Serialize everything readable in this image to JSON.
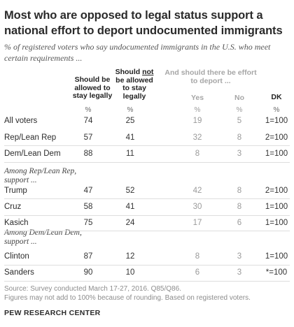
{
  "title": "Most who are opposed to legal status support a national effort to deport undocumented immigrants",
  "subtitle": "% of registered voters who say undocumented immigrants in the U.S. who meet certain requirements ...",
  "headers": {
    "col1": "Should be allowed to stay legally",
    "col2_pre": "Should ",
    "col2_not": "not",
    "col2_post": " be allowed to stay legally",
    "group": "And should there be effort to deport ...",
    "yes": "Yes",
    "no": "No",
    "dk": "DK",
    "pct": "%"
  },
  "colors": {
    "text": "#2b2b2b",
    "grey": "#9a9a9a",
    "rule": "#dedede"
  },
  "chart_data": {
    "type": "table",
    "columns": [
      "Should be allowed to stay legally",
      "Should not be allowed to stay legally",
      "Yes",
      "No",
      "DK"
    ],
    "rows": [
      {
        "label": "All voters",
        "group": "",
        "values": [
          "74",
          "25",
          "19",
          "5",
          "1=100"
        ]
      },
      {
        "label": "Rep/Lean Rep",
        "group": "",
        "values": [
          "57",
          "41",
          "32",
          "8",
          "2=100"
        ]
      },
      {
        "label": "Dem/Lean Dem",
        "group": "",
        "values": [
          "88",
          "11",
          "8",
          "3",
          "1=100"
        ]
      },
      {
        "label": "Trump",
        "group": "Among Rep/Lean Rep, support ...",
        "values": [
          "47",
          "52",
          "42",
          "8",
          "2=100"
        ]
      },
      {
        "label": "Cruz",
        "group": "Among Rep/Lean Rep, support ...",
        "values": [
          "58",
          "41",
          "30",
          "8",
          "1=100"
        ]
      },
      {
        "label": "Kasich",
        "group": "Among Rep/Lean Rep, support ...",
        "values": [
          "75",
          "24",
          "17",
          "6",
          "1=100"
        ]
      },
      {
        "label": "Clinton",
        "group": "Among Dem/Lean Dem, support ...",
        "values": [
          "87",
          "12",
          "8",
          "3",
          "1=100"
        ]
      },
      {
        "label": "Sanders",
        "group": "Among Dem/Lean Dem, support ...",
        "values": [
          "90",
          "10",
          "6",
          "3",
          "*=100"
        ]
      }
    ],
    "groups": [
      "Among Rep/Lean Rep, support ...",
      "Among Dem/Lean Dem, support ..."
    ]
  },
  "footer": {
    "source": "Source: Survey conducted March 17-27, 2016. Q85/Q86.",
    "note": "Figures may not add to 100% because of rounding. Based on registered voters.",
    "brand": "PEW RESEARCH CENTER"
  }
}
